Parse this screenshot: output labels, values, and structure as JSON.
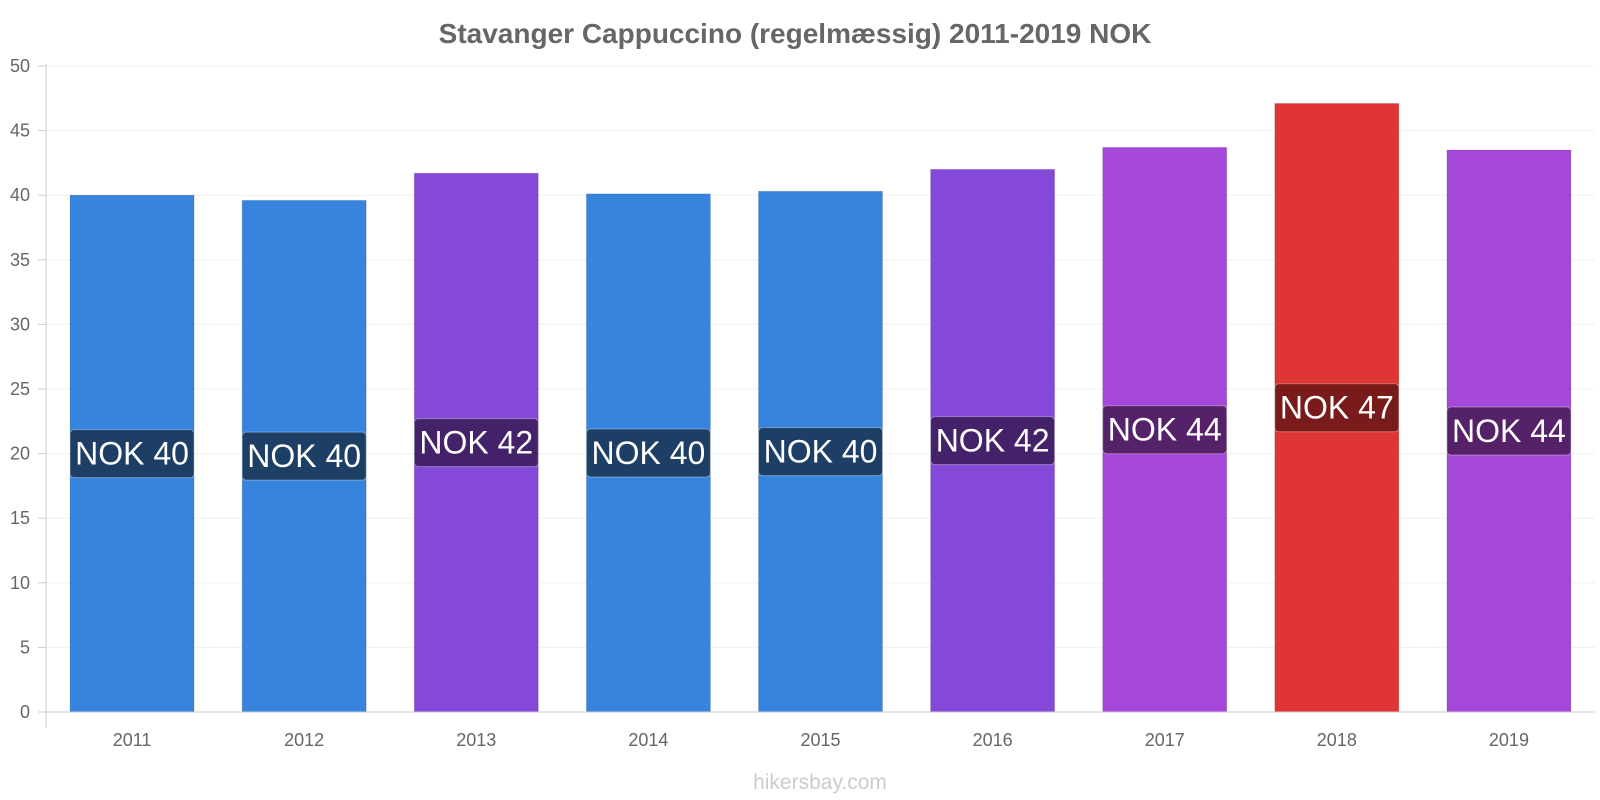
{
  "chart_data": {
    "type": "bar",
    "title": "Stavanger Cappuccino (regelmæssig) 2011-2019 NOK",
    "xlabel": "",
    "ylabel": "",
    "ylim": [
      0,
      50
    ],
    "yticks": [
      0,
      5,
      10,
      15,
      20,
      25,
      30,
      35,
      40,
      45,
      50
    ],
    "categories": [
      "2011",
      "2012",
      "2013",
      "2014",
      "2015",
      "2016",
      "2017",
      "2018",
      "2019"
    ],
    "values": [
      40.0,
      39.6,
      41.7,
      40.1,
      40.3,
      42.0,
      43.7,
      47.1,
      43.5
    ],
    "data_labels": [
      "NOK 40",
      "NOK 40",
      "NOK 42",
      "NOK 40",
      "NOK 40",
      "NOK 42",
      "NOK 44",
      "NOK 47",
      "NOK 44"
    ],
    "bar_colors": [
      "#3784df",
      "#3784df",
      "#8449d9",
      "#3784df",
      "#3784df",
      "#8449d9",
      "#a548d9",
      "#e03535",
      "#a548d9"
    ],
    "label_bg_colors": [
      "#1d3f66",
      "#1d3f66",
      "#44226a",
      "#1d3f66",
      "#1d3f66",
      "#44226a",
      "#55226a",
      "#7a1b1b",
      "#55226a"
    ],
    "grid": true,
    "legend": "none"
  },
  "watermark": "hikersbay.com"
}
